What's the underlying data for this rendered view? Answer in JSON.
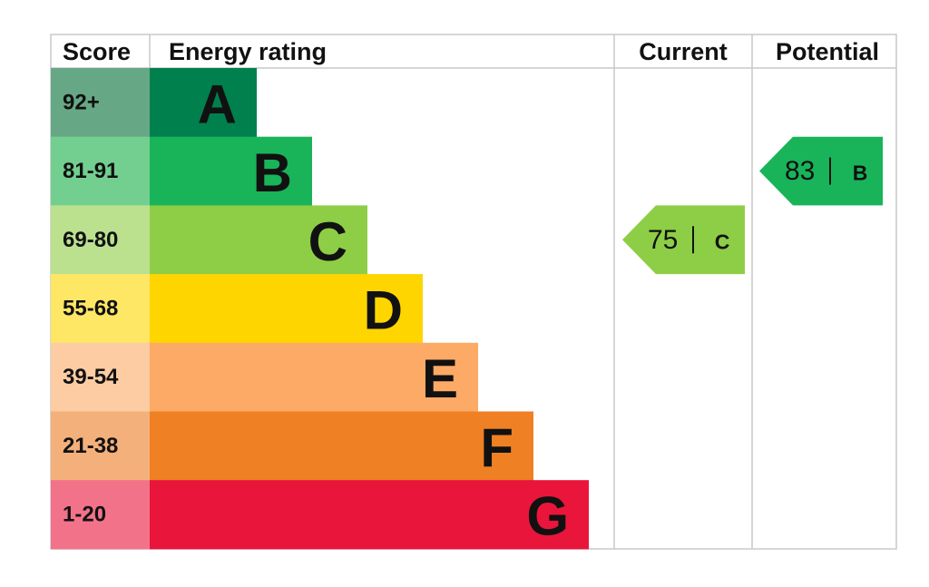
{
  "header": {
    "score": "Score",
    "rating": "Energy rating",
    "current": "Current",
    "potential": "Potential"
  },
  "bands": [
    {
      "score": "92+",
      "letter": "A",
      "color": "#00804d",
      "score_color": "#66a885"
    },
    {
      "score": "81-91",
      "letter": "B",
      "color": "#19b459",
      "score_color": "#73cf8f"
    },
    {
      "score": "69-80",
      "letter": "C",
      "color": "#8dce46",
      "score_color": "#bbe18f"
    },
    {
      "score": "55-68",
      "letter": "D",
      "color": "#ffd500",
      "score_color": "#ffe766"
    },
    {
      "score": "39-54",
      "letter": "E",
      "color": "#fcaa65",
      "score_color": "#fdcca3"
    },
    {
      "score": "21-38",
      "letter": "F",
      "color": "#ef8023",
      "score_color": "#f4b07b"
    },
    {
      "score": "1-20",
      "letter": "G",
      "color": "#e9153b",
      "score_color": "#f27389"
    }
  ],
  "current": {
    "value": 75,
    "letter": "C"
  },
  "potential": {
    "value": 83,
    "letter": "B"
  }
}
